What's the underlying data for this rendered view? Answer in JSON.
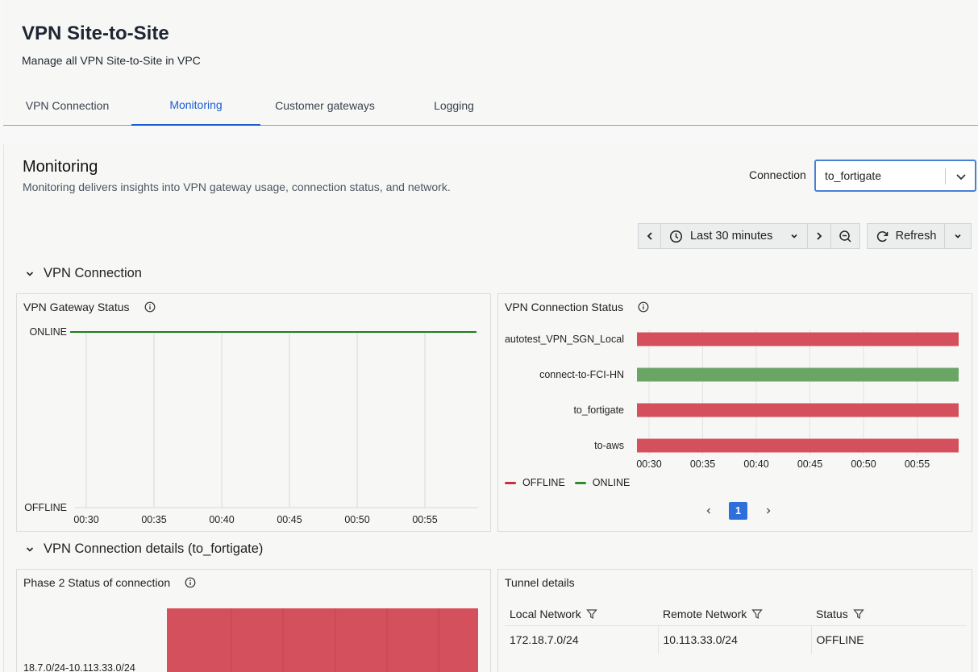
{
  "page": {
    "title": "VPN Site-to-Site",
    "subtitle": "Manage all VPN Site-to-Site in VPC"
  },
  "tabs": [
    {
      "label": "VPN Connection",
      "active": false
    },
    {
      "label": "Monitoring",
      "active": true
    },
    {
      "label": "Customer gateways",
      "active": false
    },
    {
      "label": "Logging",
      "active": false
    }
  ],
  "monitoring": {
    "title": "Monitoring",
    "description": "Monitoring delivers insights into VPN gateway usage, connection status, and network.",
    "connection_label": "Connection",
    "connection_value": "to_fortigate"
  },
  "toolbar": {
    "time_range": "Last 30 minutes",
    "refresh_label": "Refresh"
  },
  "sections": {
    "vpn_connection": "VPN Connection",
    "details": "VPN Connection details (to_fortigate)"
  },
  "panels": {
    "gateway_status": "VPN Gateway Status",
    "connection_status": "VPN Connection Status",
    "phase2": "Phase 2 Status of connection",
    "tunnel": "Tunnel details"
  },
  "colors": {
    "offline": "#d4505c",
    "online": "#6aa566",
    "gateway_line": "#1a7f1a",
    "accent": "#1b5dd1"
  },
  "chart_data": [
    {
      "type": "line",
      "title": "VPN Gateway Status",
      "x": [
        "00:30",
        "00:35",
        "00:40",
        "00:45",
        "00:50",
        "00:55"
      ],
      "y_categories": [
        "ONLINE",
        "OFFLINE"
      ],
      "series": [
        {
          "values": [
            "ONLINE",
            "ONLINE",
            "ONLINE",
            "ONLINE",
            "ONLINE",
            "ONLINE"
          ]
        }
      ],
      "grid": true
    },
    {
      "type": "bar",
      "title": "VPN Connection Status",
      "categories": [
        "autotest_VPN_SGN_Local",
        "connect-to-FCI-HN",
        "to_fortigate",
        "to-aws"
      ],
      "status": [
        "OFFLINE",
        "ONLINE",
        "OFFLINE",
        "OFFLINE"
      ],
      "x_ticks": [
        "00:30",
        "00:35",
        "00:40",
        "00:45",
        "00:50",
        "00:55"
      ],
      "legend": [
        "OFFLINE",
        "ONLINE"
      ],
      "legend_position": "bottom-left",
      "page": "1"
    },
    {
      "type": "bar",
      "title": "Phase 2 Status of connection",
      "categories": [
        "18.7.0/24-10.113.33.0/24"
      ],
      "status": [
        "OFFLINE"
      ]
    }
  ],
  "tunnel": {
    "headers": [
      "Local Network",
      "Remote Network",
      "Status"
    ],
    "rows": [
      [
        "172.18.7.0/24",
        "10.113.33.0/24",
        "OFFLINE"
      ]
    ]
  }
}
